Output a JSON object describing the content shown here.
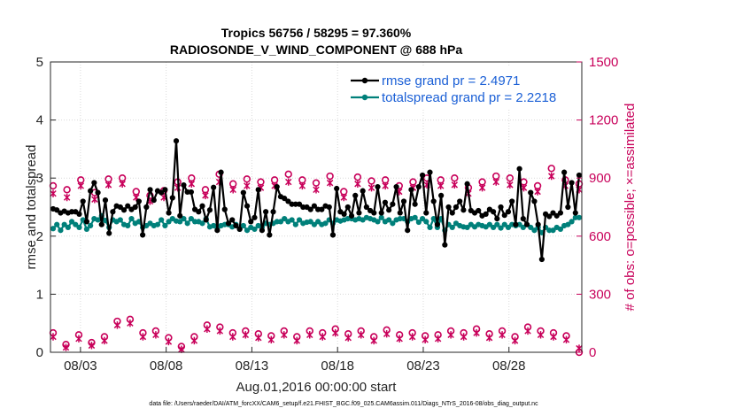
{
  "colors": {
    "rmse": "#000000",
    "spread": "#00807a",
    "obs": "#c8005a",
    "legend_text": "#1a5fd6",
    "grid": "#d9d9d9"
  },
  "chart_data": {
    "type": "line",
    "title_line1": "Tropics 56756 / 58295 = 97.360%",
    "title_line2": "RADIOSONDE_V_WIND_COMPONENT @ 688 hPa",
    "xlabel": "Aug.01,2016 00:00:00 start",
    "ylabel_left": "rmse and totalspread",
    "ylabel_right": "# of obs: o=possible; ×=assimilated",
    "footnote": "data file: /Users/raeder/DAI/ATM_forcXX/CAM6_setup/f.e21.FHIST_BGC.f09_025.CAM6assim.011/Diags_NTrS_2016-08/obs_diag_output.nc",
    "x_ticks": [
      "08/03",
      "08/08",
      "08/13",
      "08/18",
      "08/23",
      "08/28"
    ],
    "x_tick_days": [
      3,
      8,
      13,
      18,
      23,
      28
    ],
    "xlim_days": [
      1.25,
      32.25
    ],
    "ylim_left": [
      0,
      5
    ],
    "yticks_left": [
      "0",
      "1",
      "2",
      "3",
      "4",
      "5"
    ],
    "ylim_right": [
      0,
      1500
    ],
    "yticks_right": [
      "0",
      "300",
      "600",
      "900",
      "1200",
      "1500"
    ],
    "legend": [
      {
        "label": "rmse grand pr = 2.4971"
      },
      {
        "label": "totalspread grand pr = 2.2218"
      }
    ],
    "series": [
      {
        "name": "rmse",
        "values": [
          2.47,
          2.45,
          2.4,
          2.43,
          2.4,
          2.42,
          2.42,
          2.38,
          2.6,
          2.25,
          2.78,
          2.92,
          2.75,
          2.2,
          2.62,
          2.05,
          2.42,
          2.52,
          2.5,
          2.45,
          2.52,
          2.46,
          2.5,
          2.6,
          2.02,
          2.5,
          2.8,
          2.62,
          2.78,
          2.75,
          2.8,
          2.4,
          2.66,
          3.64,
          2.35,
          2.88,
          2.76,
          2.76,
          2.46,
          2.42,
          2.52,
          2.28,
          2.45,
          2.84,
          2.1,
          3.1,
          2.46,
          2.22,
          2.28,
          2.18,
          2.12,
          2.75,
          2.52,
          2.25,
          2.32,
          2.8,
          2.1,
          2.42,
          2.02,
          2.42,
          2.85,
          2.68,
          2.65,
          2.6,
          2.55,
          2.55,
          2.55,
          2.5,
          2.5,
          2.46,
          2.52,
          2.46,
          2.46,
          2.52,
          2.5,
          2.02,
          2.82,
          2.42,
          2.38,
          2.5,
          2.35,
          2.7,
          2.4,
          2.78,
          2.5,
          2.44,
          2.4,
          2.85,
          2.4,
          2.58,
          2.45,
          2.55,
          2.85,
          2.4,
          2.6,
          2.1,
          2.8,
          2.55,
          2.85,
          3.05,
          2.4,
          3.1,
          2.6,
          2.2,
          2.7,
          1.85,
          2.5,
          2.4,
          2.5,
          2.6,
          2.45,
          2.9,
          2.44,
          2.4,
          2.44,
          2.35,
          2.38,
          2.46,
          2.42,
          2.3,
          2.5,
          2.36,
          2.42,
          2.6,
          2.2,
          3.16,
          2.3,
          2.2,
          2.75,
          2.6,
          2.2,
          1.6,
          2.38,
          2.34,
          2.4,
          2.35,
          2.4,
          3.1,
          2.5,
          2.92,
          2.4,
          3.05
        ]
      },
      {
        "name": "totalspread",
        "values": [
          2.13,
          2.2,
          2.1,
          2.2,
          2.15,
          2.25,
          2.2,
          2.15,
          2.28,
          2.12,
          2.18,
          2.3,
          2.28,
          2.35,
          2.27,
          2.15,
          2.28,
          2.25,
          2.28,
          2.2,
          2.18,
          2.3,
          2.22,
          2.25,
          2.15,
          2.18,
          2.22,
          2.18,
          2.2,
          2.28,
          2.18,
          2.25,
          2.3,
          2.26,
          2.25,
          2.3,
          2.22,
          2.3,
          2.25,
          2.25,
          2.22,
          2.3,
          2.16,
          2.18,
          2.14,
          2.18,
          2.2,
          2.2,
          2.16,
          2.2,
          2.12,
          2.18,
          2.1,
          2.15,
          2.12,
          2.18,
          2.15,
          2.22,
          2.2,
          2.22,
          2.25,
          2.25,
          2.3,
          2.25,
          2.28,
          2.2,
          2.28,
          2.22,
          2.24,
          2.25,
          2.2,
          2.25,
          2.2,
          2.22,
          2.28,
          2.22,
          2.28,
          2.26,
          2.28,
          2.3,
          2.3,
          2.28,
          2.3,
          2.28,
          2.32,
          2.3,
          2.28,
          2.25,
          2.32,
          2.25,
          2.28,
          2.22,
          2.28,
          2.3,
          2.3,
          2.25,
          2.3,
          2.32,
          2.24,
          2.3,
          2.25,
          2.15,
          2.3,
          2.15,
          2.3,
          2.1,
          2.2,
          2.15,
          2.22,
          2.18,
          2.16,
          2.15,
          2.2,
          2.16,
          2.2,
          2.18,
          2.16,
          2.2,
          2.15,
          2.2,
          2.14,
          2.2,
          2.15,
          2.2,
          2.18,
          2.2,
          2.15,
          2.2,
          2.15,
          2.1,
          2.15,
          2.06,
          2.15,
          2.1,
          2.1,
          2.15,
          2.12,
          2.18,
          2.2,
          2.25,
          2.32,
          2.32
        ]
      },
      {
        "name": "obs_possible_peak",
        "marker": "circle",
        "values": [
          860,
          840,
          890,
          825,
          895,
          900,
          830,
          810,
          835,
          880,
          900,
          840,
          920,
          870,
          895,
          880,
          890,
          920,
          890,
          875,
          910,
          830,
          905,
          885,
          890,
          860,
          880,
          900,
          890,
          900,
          850,
          880,
          910,
          900,
          880,
          860,
          950,
          890,
          870
        ]
      },
      {
        "name": "obs_assimilated_peak",
        "marker": "x",
        "values": [
          820,
          800,
          860,
          790,
          865,
          870,
          800,
          780,
          800,
          850,
          870,
          810,
          880,
          840,
          860,
          850,
          860,
          880,
          860,
          840,
          875,
          800,
          870,
          850,
          860,
          830,
          850,
          865,
          860,
          865,
          820,
          850,
          880,
          865,
          850,
          830,
          910,
          860,
          840
        ]
      },
      {
        "name": "obs_possible_trough",
        "marker": "circle",
        "values": [
          100,
          40,
          90,
          50,
          80,
          160,
          170,
          100,
          110,
          75,
          30,
          80,
          140,
          130,
          100,
          110,
          95,
          85,
          110,
          80,
          110,
          100,
          120,
          95,
          110,
          80,
          115,
          90,
          100,
          85,
          90,
          110,
          100,
          120,
          95,
          110,
          80,
          130,
          110,
          100,
          85,
          0
        ]
      },
      {
        "name": "obs_assimilated_trough",
        "marker": "x",
        "values": [
          80,
          25,
          70,
          35,
          60,
          140,
          150,
          80,
          90,
          55,
          15,
          60,
          120,
          110,
          80,
          90,
          75,
          65,
          90,
          60,
          90,
          80,
          100,
          75,
          90,
          60,
          95,
          70,
          80,
          65,
          70,
          90,
          80,
          100,
          75,
          90,
          60,
          110,
          90,
          80,
          65,
          20
        ]
      }
    ]
  }
}
